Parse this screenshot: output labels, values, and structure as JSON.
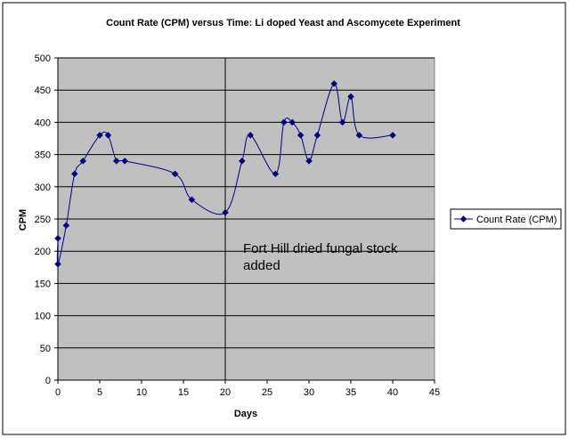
{
  "chart_data": {
    "type": "scatter",
    "title": "Count Rate (CPM) versus Time: Li doped Yeast and Ascomycete Experiment",
    "xlabel": "Days",
    "ylabel": "CPM",
    "xlim": [
      0,
      45
    ],
    "ylim": [
      0,
      500
    ],
    "x_ticks": [
      "0",
      "5",
      "10",
      "15",
      "20",
      "25",
      "30",
      "35",
      "40",
      "45"
    ],
    "y_ticks": [
      "0",
      "50",
      "100",
      "150",
      "200",
      "250",
      "300",
      "350",
      "400",
      "450",
      "500"
    ],
    "grid": "horizontal",
    "plot_background": "#c0c0c0",
    "series": [
      {
        "name": "Count Rate (CPM)",
        "color": "#000080",
        "marker": "diamond",
        "smooth": true,
        "x": [
          0,
          0,
          1,
          2,
          3,
          5,
          6,
          7,
          8,
          14,
          16,
          20,
          22,
          23,
          26,
          27,
          28,
          29,
          30,
          31,
          33,
          34,
          35,
          36,
          40
        ],
        "y": [
          220,
          180,
          240,
          320,
          340,
          380,
          380,
          340,
          340,
          320,
          280,
          260,
          340,
          380,
          320,
          400,
          400,
          380,
          340,
          380,
          460,
          400,
          440,
          380,
          380
        ]
      }
    ],
    "legend": {
      "position": "right",
      "label": "Count Rate (CPM)"
    },
    "vertical_line": {
      "x": 20,
      "color": "#000000"
    },
    "annotation": {
      "lines": [
        "Fort Hill dried fungal stock",
        "added"
      ]
    }
  }
}
